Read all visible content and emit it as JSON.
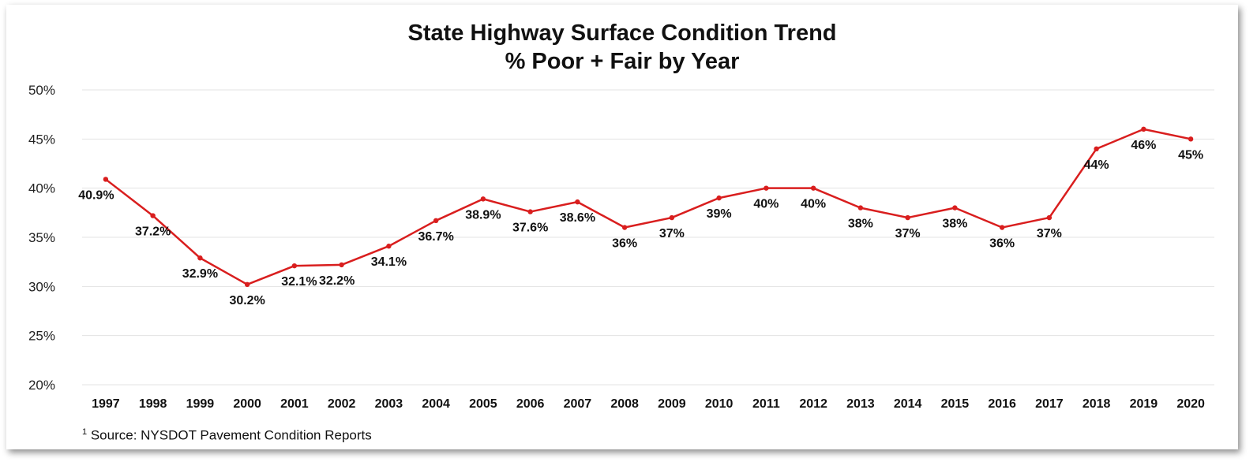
{
  "chart_data": {
    "type": "line",
    "title": "State Highway Surface Condition Trend",
    "subtitle": "% Poor + Fair by Year",
    "categories": [
      "1997",
      "1998",
      "1999",
      "2000",
      "2001",
      "2002",
      "2003",
      "2004",
      "2005",
      "2006",
      "2007",
      "2008",
      "2009",
      "2010",
      "2011",
      "2012",
      "2013",
      "2014",
      "2015",
      "2016",
      "2017",
      "2018",
      "2019",
      "2020"
    ],
    "series": [
      {
        "values": [
          40.9,
          37.2,
          32.9,
          30.2,
          32.1,
          32.2,
          34.1,
          36.7,
          38.9,
          37.6,
          38.6,
          36,
          37,
          39,
          40,
          40,
          38,
          37,
          38,
          36,
          37,
          44,
          46,
          45
        ],
        "labels": [
          "40.9%",
          "37.2%",
          "32.9%",
          "30.2%",
          "32.1%",
          "32.2%",
          "34.1%",
          "36.7%",
          "38.9%",
          "37.6%",
          "38.6%",
          "36%",
          "37%",
          "39%",
          "40%",
          "40%",
          "38%",
          "37%",
          "38%",
          "36%",
          "37%",
          "44%",
          "46%",
          "45%"
        ],
        "color": "#d91e1e"
      }
    ],
    "ylim": [
      20,
      50
    ],
    "yticks": [
      "20%",
      "25%",
      "30%",
      "35%",
      "40%",
      "45%",
      "50%"
    ],
    "grid": true,
    "gridColor": "#e3e3e3"
  },
  "footnote": {
    "marker": "1",
    "text": " Source: NYSDOT Pavement Condition Reports"
  }
}
